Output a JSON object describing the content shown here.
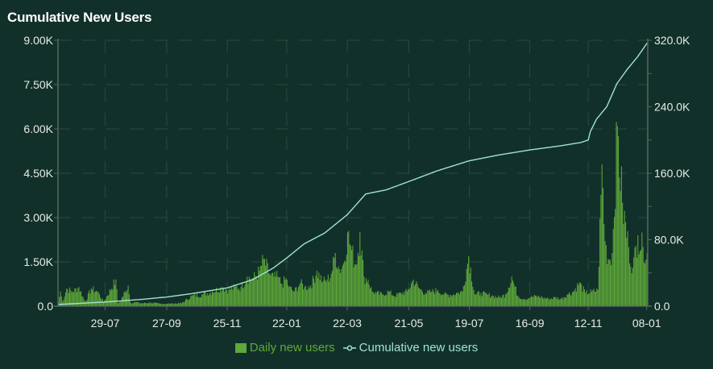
{
  "title": "Cumulative New Users",
  "colors": {
    "background": "#12302a",
    "bar": "#5fa83a",
    "line": "#9fe3d2",
    "axis": "#56675f",
    "grid": "#284a40",
    "bar_legend_text": "#5fa83a",
    "line_legend_text": "#9fe3d2"
  },
  "legend": {
    "bar_label": "Daily new users",
    "line_label": "Cumulative new users"
  },
  "chart_data": {
    "type": "bar+line",
    "title": "Cumulative New Users",
    "xlabel": "",
    "ylabel_left": "Daily new users",
    "ylabel_right": "Cumulative new users",
    "x_tick_labels": [
      "29-07",
      "27-09",
      "25-11",
      "22-01",
      "22-03",
      "21-05",
      "19-07",
      "16-09",
      "12-11",
      "08-01"
    ],
    "y_left_ticks": [
      "0.0",
      "1.50K",
      "3.00K",
      "4.50K",
      "6.00K",
      "7.50K",
      "9.00K"
    ],
    "y_right_ticks": [
      "0.0",
      "80.0K",
      "160.0K",
      "240.0K",
      "320.0K"
    ],
    "ylim_left": [
      0,
      9000
    ],
    "ylim_right": [
      0,
      320000
    ],
    "grid": true,
    "legend_position": "bottom",
    "x_tick_days": [
      46,
      106,
      165,
      223,
      282,
      342,
      401,
      460,
      517,
      574
    ],
    "total_days": 575,
    "series": [
      {
        "name": "Daily new users",
        "type": "bar",
        "axis": "left",
        "anchor_days": [
          0,
          2,
          4,
          8,
          14,
          20,
          26,
          32,
          38,
          40,
          44,
          56,
          58,
          60,
          68,
          70,
          72,
          74,
          80,
          90,
          100,
          110,
          120,
          130,
          140,
          150,
          160,
          166,
          172,
          178,
          184,
          190,
          196,
          200,
          206,
          210,
          214,
          218,
          222,
          225,
          230,
          236,
          240,
          246,
          252,
          258,
          262,
          266,
          270,
          274,
          278,
          282,
          286,
          290,
          294,
          298,
          302,
          306,
          310,
          316,
          322,
          328,
          334,
          340,
          346,
          352,
          358,
          364,
          370,
          376,
          382,
          388,
          394,
          400,
          406,
          412,
          418,
          424,
          430,
          436,
          442,
          448,
          454,
          460,
          466,
          472,
          478,
          484,
          490,
          496,
          502,
          508,
          514,
          520,
          526,
          530,
          533,
          536,
          540,
          545,
          550,
          556,
          560,
          565,
          570,
          574
        ],
        "values": [
          150,
          500,
          150,
          600,
          500,
          650,
          150,
          600,
          500,
          400,
          150,
          900,
          100,
          150,
          700,
          150,
          100,
          150,
          100,
          120,
          80,
          90,
          100,
          350,
          400,
          500,
          650,
          550,
          650,
          650,
          1000,
          950,
          1200,
          1600,
          1100,
          1000,
          1000,
          750,
          950,
          650,
          500,
          800,
          650,
          700,
          1200,
          850,
          900,
          1100,
          1800,
          1250,
          1450,
          2500,
          1900,
          1400,
          2500,
          1000,
          900,
          500,
          450,
          400,
          500,
          350,
          450,
          500,
          900,
          600,
          450,
          500,
          550,
          400,
          380,
          450,
          500,
          1700,
          400,
          450,
          400,
          350,
          300,
          400,
          1000,
          350,
          250,
          300,
          350,
          300,
          250,
          300,
          250,
          400,
          500,
          800,
          450,
          500,
          550,
          4800,
          2200,
          1600,
          1800,
          6100,
          3500,
          2000,
          1300,
          2400,
          2000,
          1800
        ]
      },
      {
        "name": "Cumulative new users",
        "type": "line",
        "axis": "right",
        "anchor_days": [
          0,
          46,
          80,
          106,
          130,
          165,
          190,
          210,
          223,
          240,
          260,
          282,
          300,
          320,
          342,
          370,
          401,
          430,
          460,
          490,
          510,
          517,
          519,
          525,
          535,
          545,
          555,
          565,
          574
        ],
        "values": [
          2000,
          5000,
          8000,
          11000,
          15000,
          22000,
          32000,
          46000,
          58000,
          75000,
          88000,
          110000,
          135000,
          140000,
          150000,
          163000,
          175000,
          182000,
          188000,
          193000,
          197000,
          200000,
          210000,
          225000,
          240000,
          268000,
          285000,
          300000,
          316000
        ]
      }
    ]
  }
}
